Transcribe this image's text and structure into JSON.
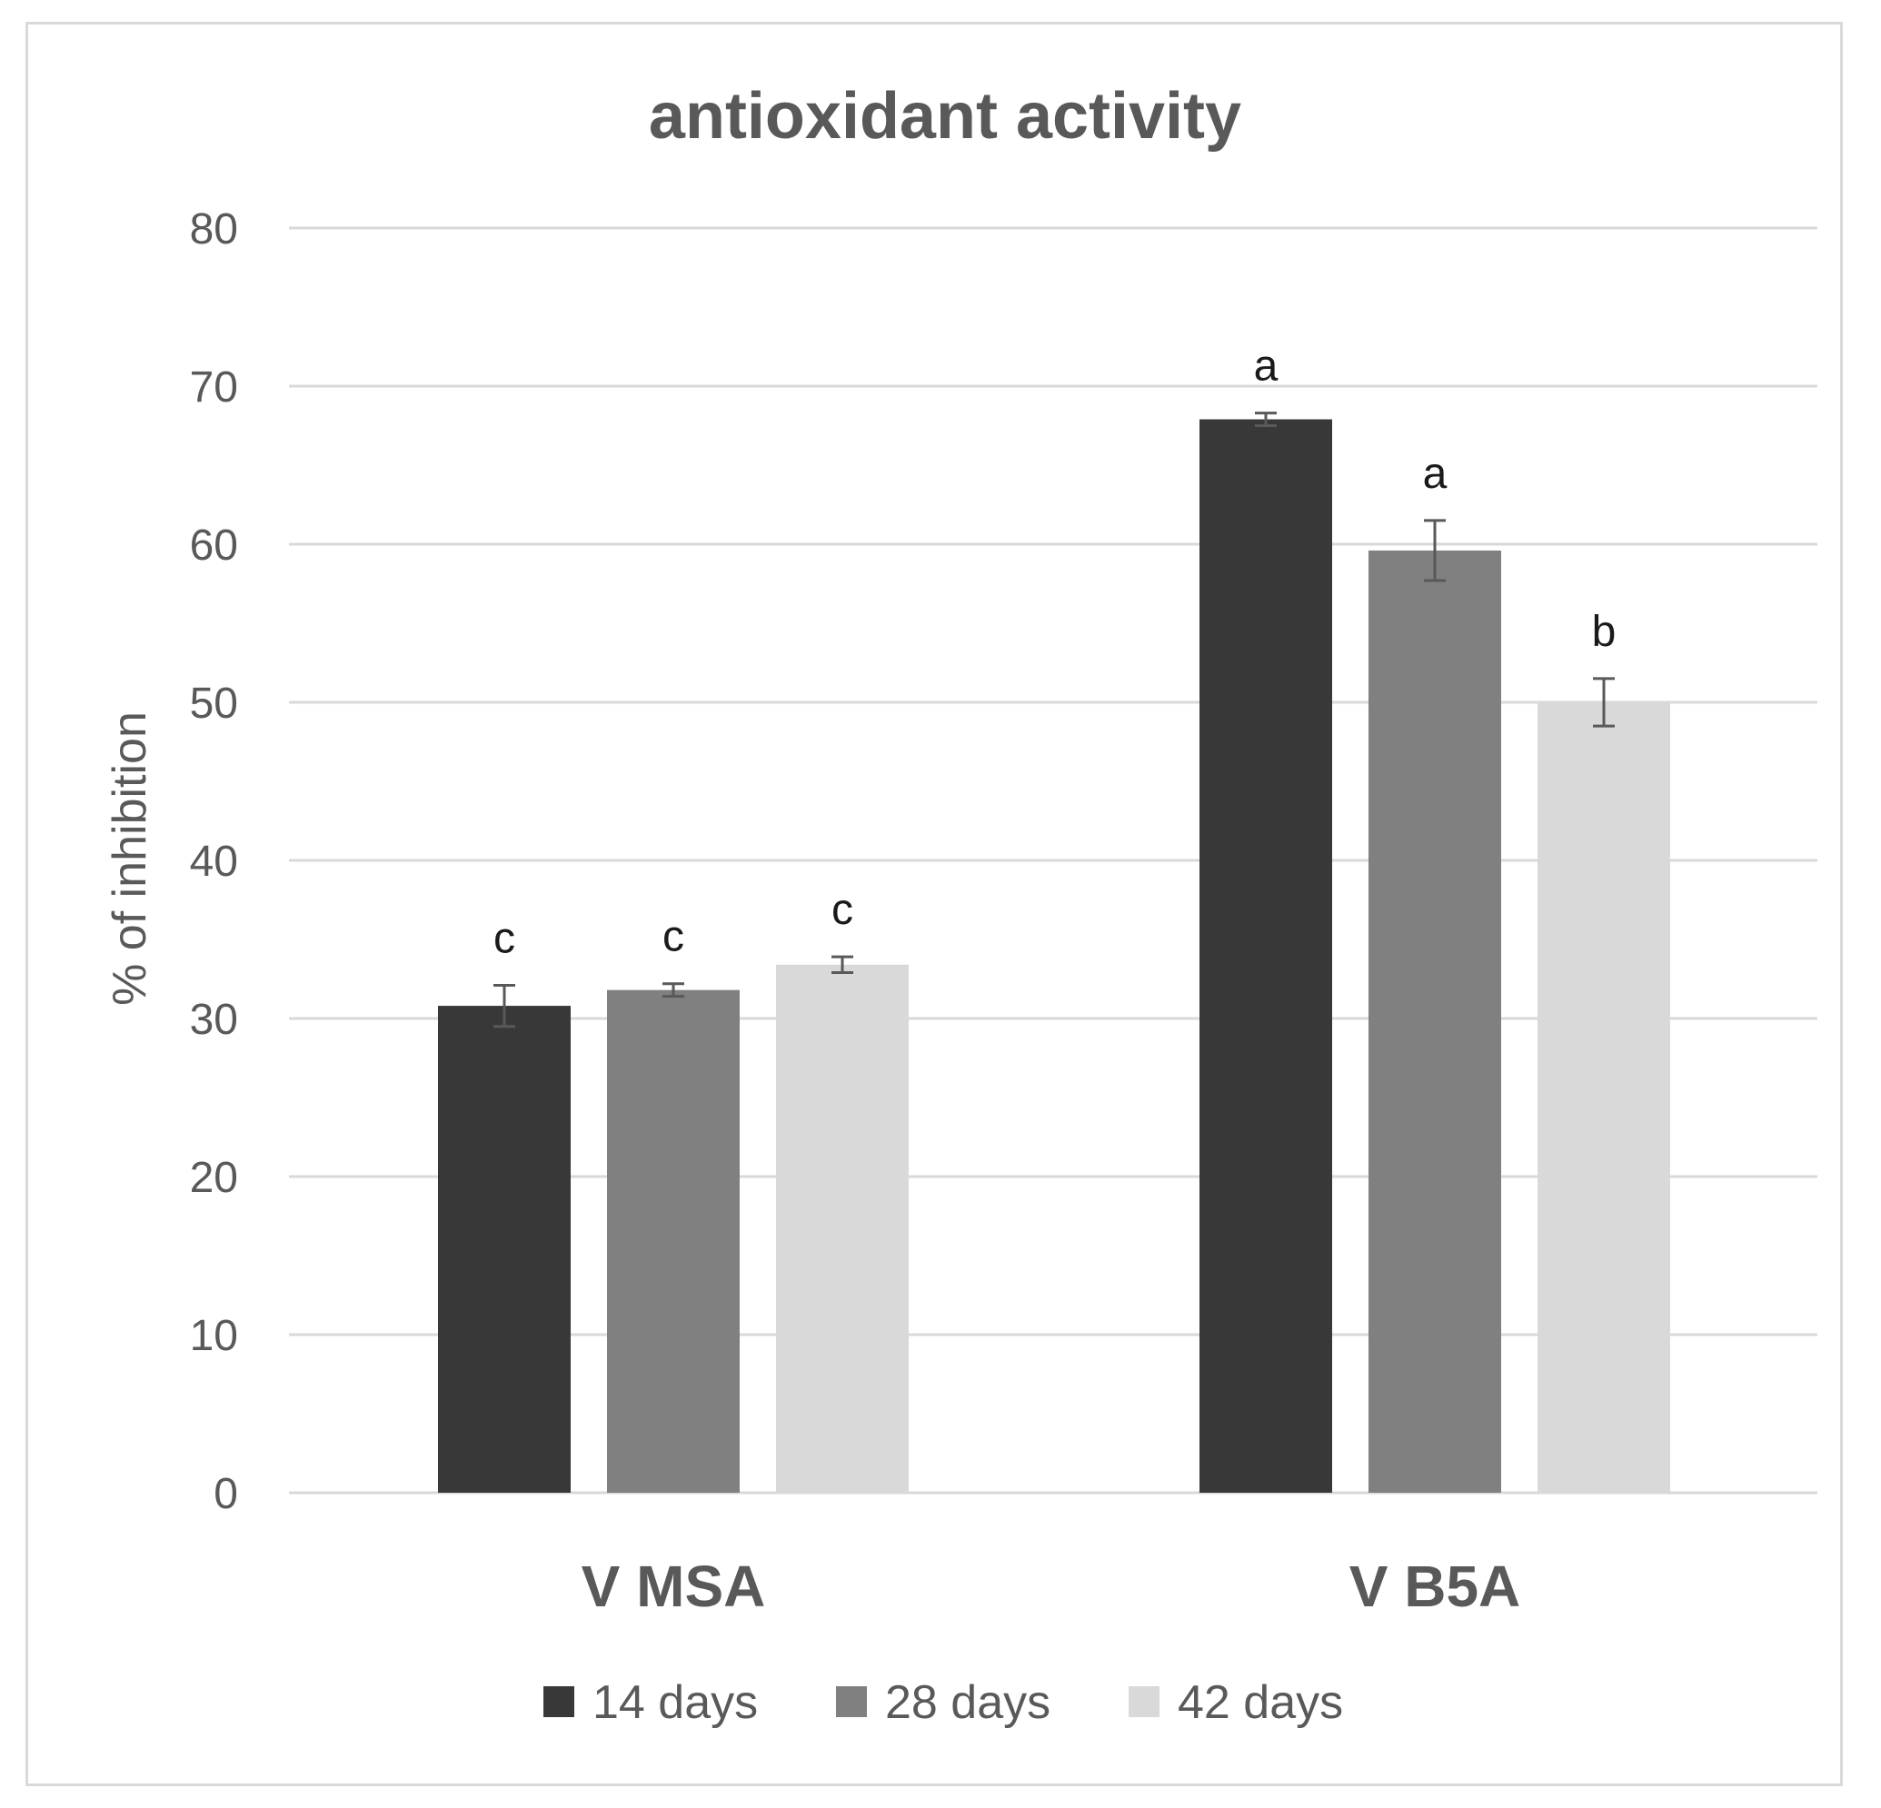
{
  "chart_data": {
    "type": "bar",
    "title": "antioxidant activity",
    "xlabel": "",
    "ylabel": "% of inhibition",
    "ylim": [
      0,
      80
    ],
    "yticks": [
      0,
      10,
      20,
      30,
      40,
      50,
      60,
      70,
      80
    ],
    "grid": true,
    "legend_position": "bottom",
    "categories": [
      "V MSA",
      "V B5A"
    ],
    "series": [
      {
        "name": "14 days",
        "color": "#383838",
        "values": [
          30.8,
          67.9
        ],
        "errors": [
          1.3,
          0.4
        ],
        "labels": [
          "c",
          "a"
        ]
      },
      {
        "name": "28 days",
        "color": "#808080",
        "values": [
          31.8,
          59.6
        ],
        "errors": [
          0.4,
          1.9
        ],
        "labels": [
          "c",
          "a"
        ]
      },
      {
        "name": "42 days",
        "color": "#d9d9d9",
        "values": [
          33.4,
          50.0
        ],
        "errors": [
          0.5,
          1.5
        ],
        "labels": [
          "c",
          "b"
        ]
      }
    ]
  }
}
